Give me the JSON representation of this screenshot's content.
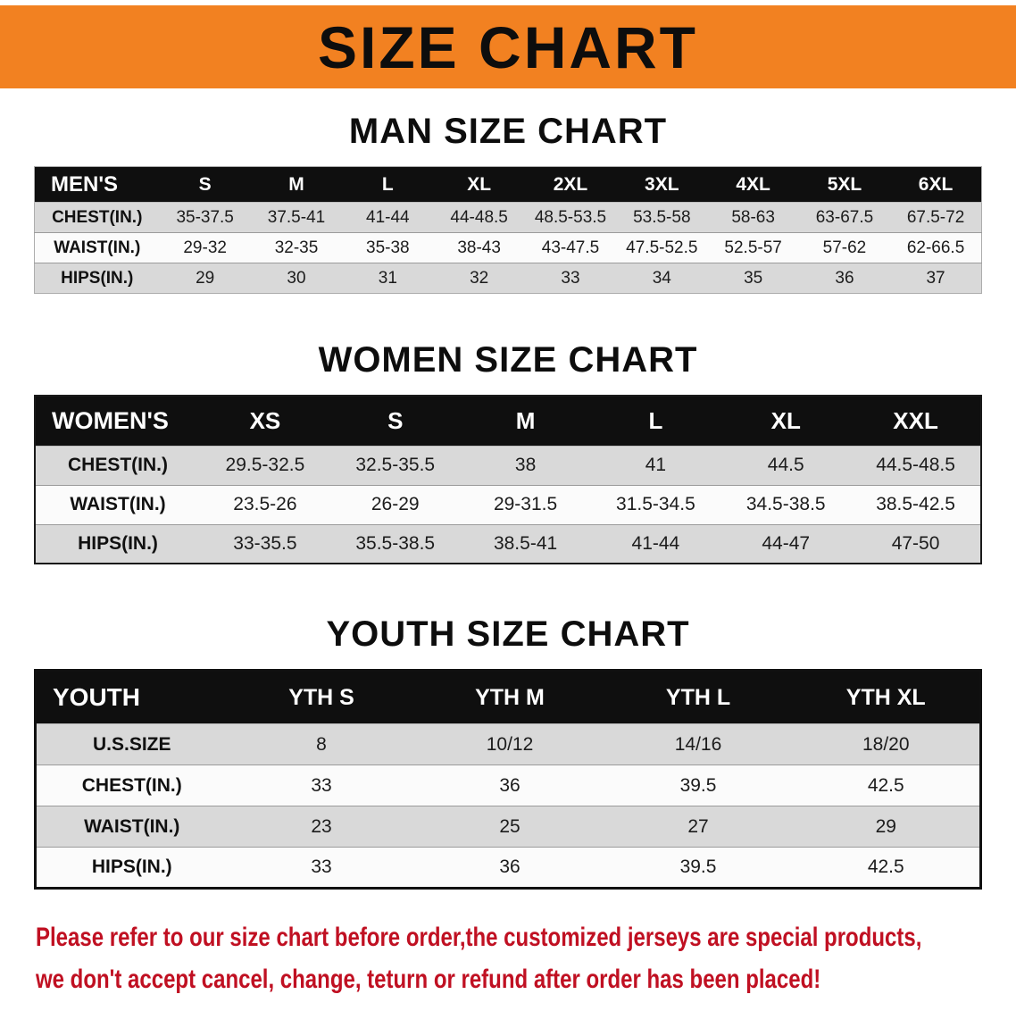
{
  "banner": {
    "title": "SIZE CHART",
    "bg_color": "#f28121"
  },
  "chart_data": [
    {
      "type": "table",
      "title": "MAN SIZE CHART",
      "corner_label": "MEN'S",
      "columns": [
        "S",
        "M",
        "L",
        "XL",
        "2XL",
        "3XL",
        "4XL",
        "5XL",
        "6XL"
      ],
      "rows": [
        {
          "label": "CHEST(IN.)",
          "values": [
            "35-37.5",
            "37.5-41",
            "41-44",
            "44-48.5",
            "48.5-53.5",
            "53.5-58",
            "58-63",
            "63-67.5",
            "67.5-72"
          ]
        },
        {
          "label": "WAIST(IN.)",
          "values": [
            "29-32",
            "32-35",
            "35-38",
            "38-43",
            "43-47.5",
            "47.5-52.5",
            "52.5-57",
            "57-62",
            "62-66.5"
          ]
        },
        {
          "label": "HIPS(IN.)",
          "values": [
            "29",
            "30",
            "31",
            "32",
            "33",
            "34",
            "35",
            "36",
            "37"
          ]
        }
      ]
    },
    {
      "type": "table",
      "title": "WOMEN SIZE CHART",
      "corner_label": "WOMEN'S",
      "columns": [
        "XS",
        "S",
        "M",
        "L",
        "XL",
        "XXL"
      ],
      "rows": [
        {
          "label": "CHEST(IN.)",
          "values": [
            "29.5-32.5",
            "32.5-35.5",
            "38",
            "41",
            "44.5",
            "44.5-48.5"
          ]
        },
        {
          "label": "WAIST(IN.)",
          "values": [
            "23.5-26",
            "26-29",
            "29-31.5",
            "31.5-34.5",
            "34.5-38.5",
            "38.5-42.5"
          ]
        },
        {
          "label": "HIPS(IN.)",
          "values": [
            "33-35.5",
            "35.5-38.5",
            "38.5-41",
            "41-44",
            "44-47",
            "47-50"
          ]
        }
      ]
    },
    {
      "type": "table",
      "title": "YOUTH SIZE CHART",
      "corner_label": "YOUTH",
      "columns": [
        "YTH S",
        "YTH M",
        "YTH L",
        "YTH XL"
      ],
      "rows": [
        {
          "label": "U.S.SIZE",
          "values": [
            "8",
            "10/12",
            "14/16",
            "18/20"
          ]
        },
        {
          "label": "CHEST(IN.)",
          "values": [
            "33",
            "36",
            "39.5",
            "42.5"
          ]
        },
        {
          "label": "WAIST(IN.)",
          "values": [
            "23",
            "25",
            "27",
            "29"
          ]
        },
        {
          "label": "HIPS(IN.)",
          "values": [
            "33",
            "36",
            "39.5",
            "42.5"
          ]
        }
      ]
    }
  ],
  "footer": {
    "lines": [
      "Please refer to our size chart before order,the customized jerseys are special products,",
      "we don't accept cancel, change, teturn or refund after order has been placed!"
    ],
    "text_color": "#c01022"
  }
}
